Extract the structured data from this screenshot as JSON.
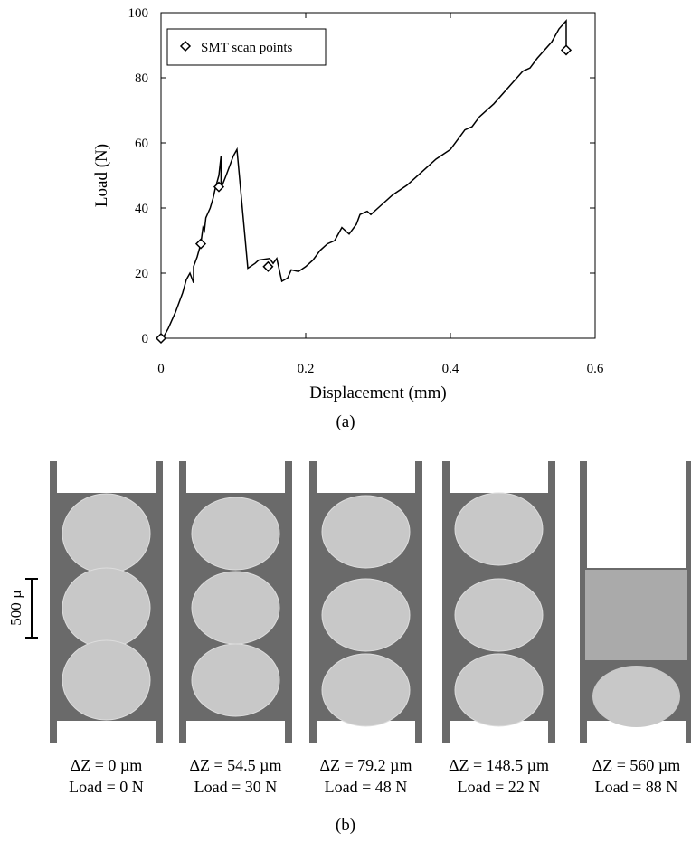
{
  "chart_data": {
    "type": "line",
    "xlabel": "Displacement (mm)",
    "ylabel": "Load (N)",
    "xlim": [
      0,
      0.6
    ],
    "ylim": [
      0,
      100
    ],
    "xticks": [
      0,
      0.2,
      0.4,
      0.6
    ],
    "yticks": [
      0,
      20,
      40,
      60,
      80,
      100
    ],
    "x": [
      0,
      0.005,
      0.01,
      0.02,
      0.03,
      0.035,
      0.04,
      0.045,
      0.045,
      0.05,
      0.055,
      0.058,
      0.06,
      0.062,
      0.068,
      0.072,
      0.075,
      0.08,
      0.083,
      0.083,
      0.09,
      0.1,
      0.105,
      0.12,
      0.13,
      0.135,
      0.15,
      0.155,
      0.16,
      0.167,
      0.175,
      0.18,
      0.19,
      0.2,
      0.21,
      0.22,
      0.23,
      0.24,
      0.25,
      0.26,
      0.27,
      0.275,
      0.285,
      0.29,
      0.3,
      0.32,
      0.34,
      0.36,
      0.38,
      0.4,
      0.42,
      0.43,
      0.44,
      0.46,
      0.48,
      0.5,
      0.51,
      0.52,
      0.54,
      0.55,
      0.56,
      0.56
    ],
    "series": [
      {
        "color": "#000000",
        "values": [
          0,
          1,
          3,
          8,
          14,
          18,
          20,
          17,
          22,
          25,
          29,
          34,
          33,
          37,
          40,
          43,
          46,
          50,
          56,
          46,
          50,
          56,
          58,
          21.5,
          23,
          24,
          24.5,
          23,
          24.5,
          17.5,
          18.5,
          21,
          20.5,
          22,
          24,
          27,
          29,
          30,
          34,
          32,
          35,
          38,
          39,
          38,
          40,
          44,
          47,
          51,
          55,
          58,
          64,
          65,
          68,
          72,
          77,
          82,
          83,
          86,
          91,
          95,
          97.5,
          88
        ]
      }
    ],
    "scan_points": {
      "name": "SMT scan points",
      "x": [
        0,
        0.055,
        0.08,
        0.148,
        0.56
      ],
      "values": [
        0,
        29,
        46.5,
        22,
        88.5
      ]
    },
    "legend": "upper left",
    "caption": "(a)"
  },
  "panel_b": {
    "scale_label": "500 µ",
    "caption": "(b)",
    "panels": [
      {
        "dz": "ΔZ = 0 µm",
        "load": "Load = 0 N"
      },
      {
        "dz": "ΔZ = 54.5 µm",
        "load": "Load = 30 N"
      },
      {
        "dz": "ΔZ = 79.2 µm",
        "load": "Load = 48 N"
      },
      {
        "dz": "ΔZ = 148.5 µm",
        "load": "Load = 22 N"
      },
      {
        "dz": "ΔZ = 560 µm",
        "load": "Load = 88 N"
      }
    ]
  }
}
